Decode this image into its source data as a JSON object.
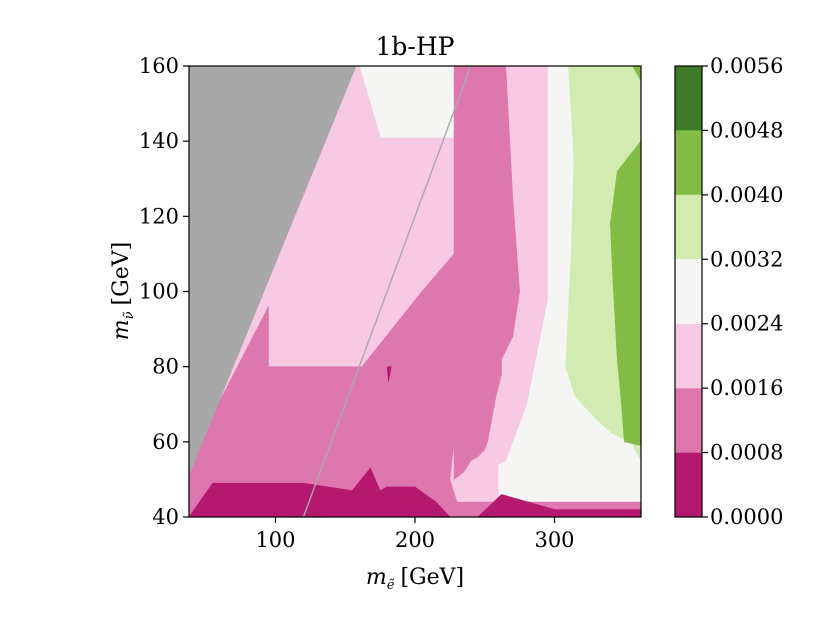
{
  "chart_data": {
    "type": "heatmap",
    "title": "1b-HP",
    "xlabel": {
      "symbol": "m",
      "sub": "ẽ",
      "unit": "[GeV]"
    },
    "ylabel": {
      "symbol": "m",
      "sub": "ν̃",
      "unit": "[GeV]"
    },
    "xlim": [
      38,
      362
    ],
    "ylim": [
      40,
      160
    ],
    "xticks": [
      "100",
      "200",
      "300"
    ],
    "xtick_values": [
      100,
      200,
      300
    ],
    "yticks": [
      "40",
      "60",
      "80",
      "100",
      "120",
      "140",
      "160"
    ],
    "ytick_values": [
      40,
      60,
      80,
      100,
      120,
      140,
      160
    ],
    "colorbar": {
      "levels": [
        0.0,
        0.0008,
        0.0016,
        0.0024,
        0.0032,
        0.004,
        0.0048,
        0.0056
      ],
      "tick_labels": [
        "0.0000",
        "0.0008",
        "0.0016",
        "0.0024",
        "0.0032",
        "0.0040",
        "0.0048",
        "0.0056"
      ],
      "colors": [
        "#b5196f",
        "#de77ae",
        "#f7c9e3",
        "#f5f5f4",
        "#d2ebb0",
        "#82bc44",
        "#3d7b27"
      ]
    },
    "excluded_region_color": "#a8a8a8",
    "diagonal_line": {
      "from": [
        120,
        40
      ],
      "to": [
        240,
        160
      ],
      "color": "#a8a8a8"
    },
    "contour_regions": [
      {
        "level": 3,
        "points": [
          [
            260,
            160
          ],
          [
            362,
            160
          ],
          [
            362,
            40
          ],
          [
            260,
            40
          ]
        ]
      },
      {
        "level": 3,
        "points": [
          [
            158,
            160
          ],
          [
            245,
            160
          ],
          [
            245,
            141
          ],
          [
            158,
            141
          ]
        ]
      },
      {
        "level": 2,
        "points": [
          [
            248,
            160
          ],
          [
            295,
            160
          ],
          [
            295,
            98
          ],
          [
            280,
            70
          ],
          [
            265,
            55
          ],
          [
            248,
            52
          ]
        ]
      },
      {
        "level": 2,
        "points": [
          [
            158,
            160
          ],
          [
            160,
            160
          ],
          [
            200,
            110
          ],
          [
            240,
            85
          ],
          [
            240,
            80
          ],
          [
            162,
            80
          ],
          [
            95,
            80
          ],
          [
            95,
            96
          ]
        ]
      },
      {
        "level": 1,
        "points": [
          [
            228,
            160
          ],
          [
            265,
            160
          ],
          [
            270,
            125
          ],
          [
            275,
            100
          ],
          [
            270,
            88
          ],
          [
            262,
            82
          ],
          [
            262,
            78
          ],
          [
            258,
            72
          ],
          [
            252,
            60
          ],
          [
            250,
            58
          ],
          [
            245,
            56
          ],
          [
            240,
            55
          ],
          [
            235,
            52
          ],
          [
            228,
            50
          ]
        ]
      },
      {
        "level": 1,
        "points": [
          [
            228,
            50
          ],
          [
            232,
            63
          ],
          [
            238,
            80
          ],
          [
            243,
            72
          ],
          [
            245,
            62
          ],
          [
            240,
            56
          ]
        ]
      },
      {
        "level": 4,
        "points": [
          [
            310,
            160
          ],
          [
            362,
            160
          ],
          [
            362,
            55
          ],
          [
            355,
            60
          ],
          [
            342,
            62
          ],
          [
            330,
            66
          ],
          [
            315,
            72
          ],
          [
            308,
            80
          ],
          [
            312,
            110
          ],
          [
            314,
            135
          ]
        ]
      },
      {
        "level": 5,
        "points": [
          [
            347,
            160
          ],
          [
            362,
            160
          ],
          [
            362,
            156
          ],
          [
            356,
            160
          ]
        ]
      },
      {
        "level": 5,
        "points": [
          [
            345,
            132
          ],
          [
            362,
            140
          ],
          [
            362,
            59
          ],
          [
            350,
            60
          ],
          [
            348,
            70
          ],
          [
            345,
            82
          ],
          [
            342,
            102
          ],
          [
            340,
            118
          ]
        ]
      },
      {
        "level": 1,
        "points": [
          [
            38,
            40
          ],
          [
            38,
            55
          ],
          [
            95,
            96
          ],
          [
            95,
            80
          ],
          [
            162,
            80
          ],
          [
            205,
            100
          ],
          [
            235,
            113
          ],
          [
            245,
            120
          ],
          [
            252,
            95
          ],
          [
            240,
            80
          ],
          [
            230,
            72
          ],
          [
            228,
            60
          ],
          [
            225,
            50
          ],
          [
            230,
            44
          ],
          [
            362,
            44
          ],
          [
            362,
            40
          ]
        ]
      },
      {
        "level": 0,
        "points": [
          [
            38,
            40
          ],
          [
            55,
            49
          ],
          [
            120,
            49
          ],
          [
            155,
            47
          ],
          [
            168,
            53
          ],
          [
            175,
            47
          ],
          [
            180,
            48
          ],
          [
            200,
            48
          ],
          [
            215,
            44
          ],
          [
            225,
            40
          ]
        ]
      },
      {
        "level": 0,
        "points": [
          [
            175,
            40
          ],
          [
            200,
            40
          ],
          [
            200,
            44
          ],
          [
            185,
            43
          ]
        ]
      },
      {
        "level": 1,
        "points": [
          [
            180,
            80
          ],
          [
            183,
            79
          ],
          [
            181,
            76
          ]
        ]
      },
      {
        "level": 0,
        "points": [
          [
            180,
            80
          ],
          [
            183,
            80
          ],
          [
            181,
            76
          ]
        ]
      },
      {
        "level": 0,
        "points": [
          [
            245,
            40
          ],
          [
            262,
            46
          ],
          [
            300,
            42
          ],
          [
            362,
            42
          ],
          [
            362,
            40
          ]
        ]
      }
    ]
  }
}
